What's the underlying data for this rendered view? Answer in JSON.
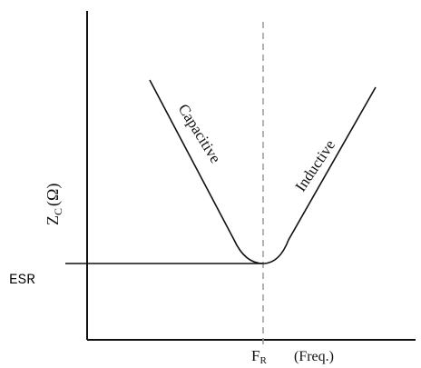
{
  "diagram": {
    "y_axis_label": {
      "main": "Z",
      "sub": "C",
      "unit": "(Ω)"
    },
    "esr_label": "ESR",
    "x_marker_label": {
      "main": "F",
      "sub": "R"
    },
    "x_unit_label": "(Freq.)",
    "curve_labels": {
      "left": "Capacitive",
      "right": "Inductive"
    }
  },
  "colors": {
    "line": "#111111",
    "dashed": "#9a9a9a",
    "background": "#ffffff"
  }
}
